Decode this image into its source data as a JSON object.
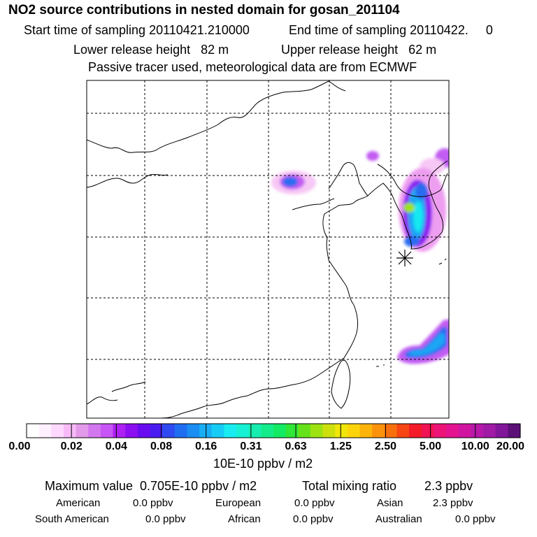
{
  "header": {
    "title": "NO2 source contributions in nested domain for gosan_201104",
    "start_label": "Start time of sampling 20110421.210000",
    "end_label": "End time of sampling 20110422.     0",
    "lower_release": "Lower release height   82 m",
    "upper_release": "Upper release height   62 m",
    "tracer_note": "Passive tracer used, meteorological data are from ECMWF"
  },
  "colorbar": {
    "ticks": [
      "0.00",
      "0.02",
      "0.04",
      "0.08",
      "0.16",
      "0.31",
      "0.63",
      "1.25",
      "2.50",
      "5.00",
      "10.00",
      "20.00"
    ],
    "colors": [
      "#ffffff",
      "#fff0ff",
      "#ffd8ff",
      "#f7baf7",
      "#e39ae9",
      "#d377ef",
      "#c855f5",
      "#ad22f2",
      "#8b0ff0",
      "#6a0cf0",
      "#4a1cf0",
      "#2e4af0",
      "#1f6ef2",
      "#1a8ef2",
      "#18aef4",
      "#16ccf5",
      "#18ecf0",
      "#16f0d4",
      "#16eeb0",
      "#14ec8c",
      "#14ea64",
      "#30e636",
      "#66e21a",
      "#9ee212",
      "#cde00e",
      "#f0e60a",
      "#fcd40a",
      "#fcb40a",
      "#fa920c",
      "#f8700e",
      "#f64614",
      "#f41c28",
      "#f01454",
      "#ec1476",
      "#e41490",
      "#d016a0",
      "#b818aa",
      "#a01aa6",
      "#82169a",
      "#5c1078"
    ],
    "unit": "10E-10 ppbv / m2"
  },
  "map": {
    "receptor_marker": "receptor-star",
    "plume_colors": {
      "light_pink": "#f7c8f5",
      "pink": "#ee9ef0",
      "violet": "#c25cf2",
      "purple": "#8b1cf0",
      "blue": "#2a6cf0",
      "sky": "#1aa6f4",
      "cyan": "#18e8f2",
      "green": "#9ee212"
    }
  },
  "summary": {
    "max_value": "Maximum value  0.705E-10 ppbv / m2",
    "total_mixing": "Total mixing ratio        2.3 ppbv",
    "american_label": "American",
    "american_value": "0.0 ppbv",
    "european_label": "European",
    "european_value": "0.0 ppbv",
    "asian_label": "Asian",
    "asian_value": "2.3 ppbv",
    "south_american_label": "South American",
    "south_american_value": "0.0 ppbv",
    "african_label": "African",
    "african_value": "0.0 ppbv",
    "australian_label": "Australian",
    "australian_value": "0.0 ppbv"
  }
}
